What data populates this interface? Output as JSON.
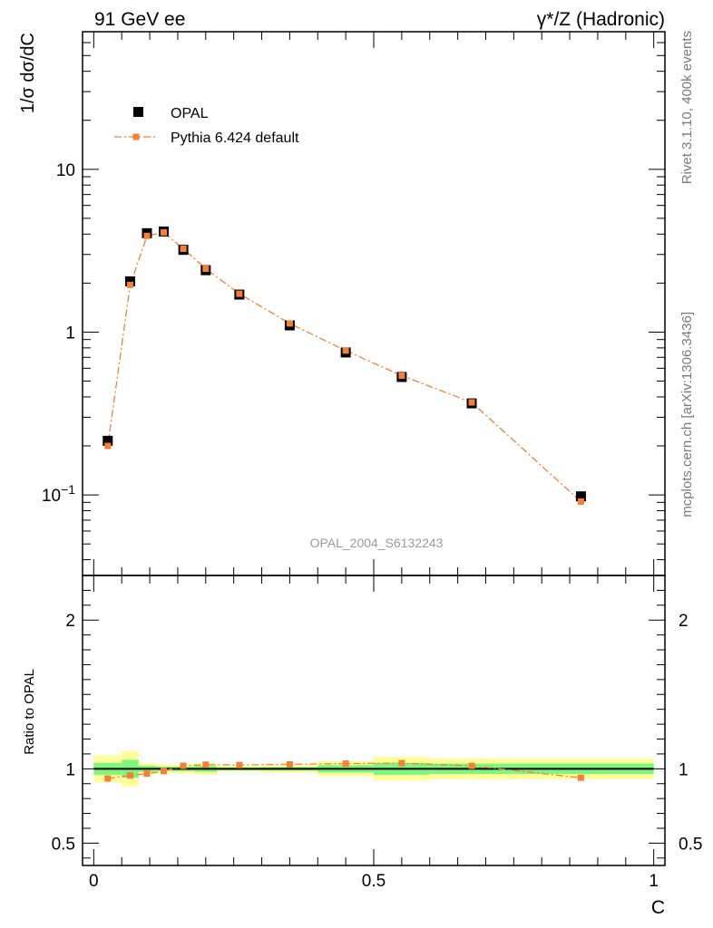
{
  "header": {
    "left": "91 GeV ee",
    "right": "γ*/Z (Hadronic)"
  },
  "side_text": {
    "top": "Rivet 3.1.10,  400k events",
    "bottom": "mcplots.cern.ch [arXiv:1306.3436]"
  },
  "watermark": "OPAL_2004_S6132243",
  "colors": {
    "data": "#000000",
    "mc": "#f47f36",
    "band_inner": "#7cf77c",
    "band_outer": "#ffff99"
  },
  "chart_data": [
    {
      "type": "scatter",
      "panel": "main",
      "ylabel": "1/σ dσ/dC",
      "yscale": "log",
      "ylim": [
        0.032,
        70
      ],
      "xlim": [
        -0.02,
        1.02
      ],
      "ytick_labels": [
        "10",
        "1",
        "10−1"
      ],
      "legend_position": "top-left",
      "series": [
        {
          "name": "OPAL",
          "marker": "square",
          "x": [
            0.025,
            0.065,
            0.095,
            0.125,
            0.16,
            0.2,
            0.26,
            0.35,
            0.45,
            0.55,
            0.675,
            0.87
          ],
          "y": [
            0.215,
            2.05,
            4.05,
            4.15,
            3.2,
            2.4,
            1.7,
            1.1,
            0.75,
            0.53,
            0.365,
            0.098
          ]
        },
        {
          "name": "Pythia 6.424 default",
          "marker": "square",
          "linestyle": "dash-dot",
          "x": [
            0.025,
            0.065,
            0.095,
            0.125,
            0.16,
            0.2,
            0.26,
            0.35,
            0.45,
            0.55,
            0.675,
            0.87
          ],
          "y": [
            0.2,
            1.95,
            3.9,
            4.1,
            3.25,
            2.45,
            1.72,
            1.13,
            0.77,
            0.54,
            0.37,
            0.091
          ]
        }
      ]
    },
    {
      "type": "line",
      "panel": "ratio",
      "xlabel": "C",
      "ylabel": "Ratio to OPAL",
      "ylim": [
        0.35,
        2.3
      ],
      "xlim": [
        -0.02,
        1.02
      ],
      "ytick_labels": [
        "0.5",
        "1",
        "2"
      ],
      "xtick_labels": [
        "0",
        "0.5",
        "1"
      ],
      "series": [
        {
          "name": "Pythia 6.424 default",
          "x": [
            0.025,
            0.065,
            0.095,
            0.125,
            0.16,
            0.2,
            0.26,
            0.35,
            0.45,
            0.55,
            0.675,
            0.87
          ],
          "y": [
            0.935,
            0.955,
            0.968,
            0.985,
            1.02,
            1.028,
            1.025,
            1.03,
            1.035,
            1.038,
            1.02,
            0.94
          ]
        }
      ],
      "uncertainty_bands": {
        "bin_edges": [
          0,
          0.05,
          0.08,
          0.11,
          0.14,
          0.18,
          0.22,
          0.3,
          0.4,
          0.5,
          0.6,
          0.75,
          1.0
        ],
        "inner": [
          0.04,
          0.06,
          0.02,
          0.015,
          0.015,
          0.02,
          0.01,
          0.012,
          0.025,
          0.04,
          0.035,
          0.035
        ],
        "outer": [
          0.09,
          0.12,
          0.04,
          0.03,
          0.03,
          0.04,
          0.02,
          0.025,
          0.05,
          0.08,
          0.07,
          0.07
        ]
      }
    }
  ]
}
